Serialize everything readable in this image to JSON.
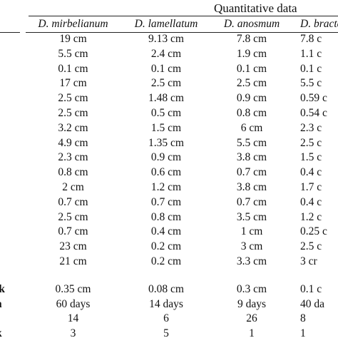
{
  "table": {
    "group_title": "Quantitative data",
    "columns": [
      "D. mirbelianum",
      "D. lamellatum",
      "D. anosmum",
      "D. bracte"
    ],
    "rows": [
      {
        "label": "",
        "values": [
          "19 cm",
          "9.13 cm",
          "7.8 cm",
          "7.8 c"
        ]
      },
      {
        "label": "",
        "values": [
          "5.5 cm",
          "2.4 cm",
          "1.9 cm",
          "1.1 c"
        ]
      },
      {
        "label": "",
        "values": [
          "0.1 cm",
          "0.1 cm",
          "0.1 cm",
          "0.1 c"
        ]
      },
      {
        "label": "",
        "values": [
          "17 cm",
          "2.5 cm",
          "2.5 cm",
          "5.5 c"
        ]
      },
      {
        "label": "",
        "values": [
          "2.5 cm",
          "1.48 cm",
          "0.9 cm",
          "0.59 c"
        ]
      },
      {
        "label": "",
        "values": [
          "2.5 cm",
          "0.5 cm",
          "0.8 cm",
          "0.54 c"
        ]
      },
      {
        "label": "",
        "values": [
          "3.2 cm",
          "1.5 cm",
          "6 cm",
          "2.3 c"
        ]
      },
      {
        "label": "",
        "values": [
          "4.9 cm",
          "1.35 cm",
          "5.5 cm",
          "2.5 c"
        ]
      },
      {
        "label": "",
        "values": [
          "2.3 cm",
          "0.9 cm",
          "3.8 cm",
          "1.5 c"
        ]
      },
      {
        "label": "",
        "values": [
          "0.8 cm",
          "0.6 cm",
          "0.7 cm",
          "0.4 c"
        ]
      },
      {
        "label": "",
        "values": [
          "2 cm",
          "1.2 cm",
          "3.8 cm",
          "1.7 c"
        ]
      },
      {
        "label": "",
        "values": [
          "0.7 cm",
          "0.7 cm",
          "0.7 cm",
          "0.4 c"
        ]
      },
      {
        "label": "",
        "values": [
          "2.5 cm",
          "0.8 cm",
          "3.5 cm",
          "1.2 c"
        ]
      },
      {
        "label": "",
        "values": [
          "0.7 cm",
          "0.4 cm",
          "1 cm",
          "0.25 c"
        ]
      },
      {
        "label": "",
        "values": [
          "23 cm",
          "0.2 cm",
          "3 cm",
          "2.5 c"
        ]
      },
      {
        "label": "",
        "values": [
          "21 cm",
          "0.2 cm",
          "3.3 cm",
          "3 cr"
        ]
      },
      {
        "label": "lk",
        "values": [
          "0.35 cm",
          "0.08 cm",
          "0.3 cm",
          "0.1 c"
        ]
      },
      {
        "label": "n",
        "values": [
          "60 days",
          "14 days",
          "9 days",
          "40 da"
        ]
      },
      {
        "label": "",
        "values": [
          "14",
          "6",
          "26",
          "8"
        ]
      },
      {
        "label": "k",
        "values": [
          "3",
          "5",
          "1",
          "1"
        ]
      }
    ]
  }
}
